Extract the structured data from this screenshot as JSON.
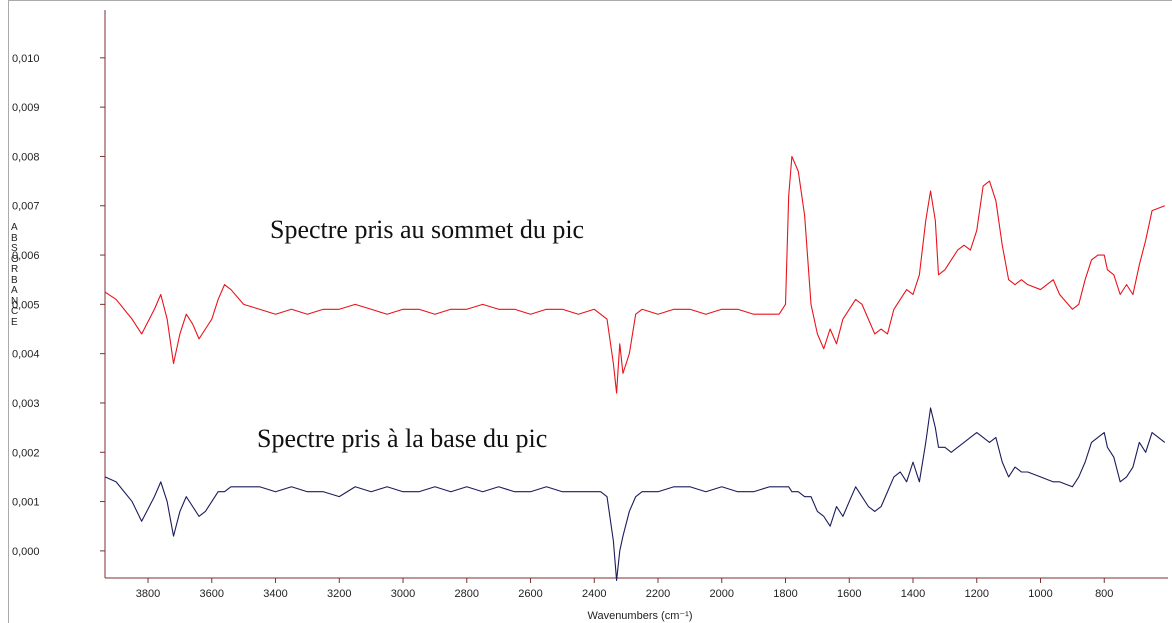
{
  "chart_data": {
    "type": "line",
    "y_label": "ABSORBANCE",
    "x_label": "Wavenumbers (cm⁻¹)",
    "annotations": [
      "Spectre pris au sommet du pic",
      "Spectre pris à la base du pic"
    ],
    "xlim": [
      3935,
      600
    ],
    "ylim": [
      -0.00055,
      0.01097
    ],
    "xticks": [
      3800,
      3600,
      3400,
      3200,
      3000,
      2800,
      2600,
      2400,
      2200,
      2000,
      1800,
      1600,
      1400,
      1200,
      1000,
      800
    ],
    "yticks": [
      {
        "value": 0,
        "label": "0,000"
      },
      {
        "value": 0.001,
        "label": "0,001"
      },
      {
        "value": 0.002,
        "label": "0,002"
      },
      {
        "value": 0.003,
        "label": "0,003"
      },
      {
        "value": 0.004,
        "label": "0,004"
      },
      {
        "value": 0.005,
        "label": "0,005"
      },
      {
        "value": 0.006,
        "label": "0,006"
      },
      {
        "value": 0.007,
        "label": "0,007"
      },
      {
        "value": 0.008,
        "label": "0,008"
      },
      {
        "value": 0.009,
        "label": "0,009"
      },
      {
        "value": 0.01,
        "label": "0,010"
      }
    ],
    "x": [
      3935,
      3900,
      3850,
      3820,
      3780,
      3760,
      3740,
      3720,
      3700,
      3680,
      3660,
      3640,
      3620,
      3600,
      3580,
      3560,
      3540,
      3500,
      3450,
      3400,
      3350,
      3300,
      3250,
      3200,
      3150,
      3100,
      3050,
      3000,
      2950,
      2900,
      2850,
      2800,
      2750,
      2700,
      2650,
      2600,
      2550,
      2500,
      2450,
      2400,
      2380,
      2360,
      2340,
      2330,
      2320,
      2310,
      2290,
      2270,
      2250,
      2200,
      2150,
      2100,
      2050,
      2000,
      1950,
      1900,
      1850,
      1820,
      1800,
      1790,
      1780,
      1760,
      1740,
      1720,
      1700,
      1680,
      1660,
      1640,
      1620,
      1600,
      1580,
      1560,
      1540,
      1520,
      1500,
      1480,
      1460,
      1440,
      1420,
      1400,
      1380,
      1360,
      1345,
      1330,
      1320,
      1300,
      1280,
      1260,
      1240,
      1220,
      1200,
      1180,
      1160,
      1140,
      1120,
      1100,
      1080,
      1060,
      1040,
      1000,
      960,
      940,
      900,
      880,
      860,
      840,
      820,
      800,
      790,
      770,
      750,
      730,
      710,
      690,
      670,
      650,
      610
    ],
    "series": [
      {
        "color": "#e8141c",
        "values": [
          0.00525,
          0.0051,
          0.0047,
          0.0044,
          0.0049,
          0.0052,
          0.0047,
          0.0038,
          0.0044,
          0.0048,
          0.0046,
          0.0043,
          0.0045,
          0.0047,
          0.0051,
          0.0054,
          0.0053,
          0.005,
          0.0049,
          0.0048,
          0.0049,
          0.0048,
          0.0049,
          0.0049,
          0.005,
          0.0049,
          0.0048,
          0.0049,
          0.0049,
          0.0048,
          0.0049,
          0.0049,
          0.005,
          0.0049,
          0.0049,
          0.0048,
          0.0049,
          0.0049,
          0.0048,
          0.0049,
          0.0048,
          0.0047,
          0.0038,
          0.0032,
          0.0042,
          0.0036,
          0.004,
          0.0048,
          0.0049,
          0.0048,
          0.0049,
          0.0049,
          0.0048,
          0.0049,
          0.0049,
          0.0048,
          0.0048,
          0.0048,
          0.005,
          0.0072,
          0.008,
          0.0077,
          0.0068,
          0.005,
          0.0044,
          0.0041,
          0.0045,
          0.0042,
          0.0047,
          0.0049,
          0.0051,
          0.005,
          0.0047,
          0.0044,
          0.0045,
          0.0044,
          0.0049,
          0.0051,
          0.0053,
          0.0052,
          0.0056,
          0.0067,
          0.0073,
          0.0067,
          0.0056,
          0.0057,
          0.0059,
          0.0061,
          0.0062,
          0.0061,
          0.0065,
          0.0074,
          0.0075,
          0.0071,
          0.0062,
          0.0055,
          0.0054,
          0.0055,
          0.0054,
          0.0053,
          0.0055,
          0.0052,
          0.0049,
          0.005,
          0.0055,
          0.0059,
          0.006,
          0.006,
          0.0057,
          0.0056,
          0.0052,
          0.0054,
          0.0052,
          0.0058,
          0.0063,
          0.0069,
          0.007
        ]
      },
      {
        "color": "#1c1c5c",
        "values": [
          0.0015,
          0.0014,
          0.001,
          0.0006,
          0.0011,
          0.0014,
          0.001,
          0.0003,
          0.0008,
          0.0011,
          0.0009,
          0.0007,
          0.0008,
          0.001,
          0.0012,
          0.0012,
          0.0013,
          0.0013,
          0.0013,
          0.0012,
          0.0013,
          0.0012,
          0.0012,
          0.0011,
          0.0013,
          0.0012,
          0.0013,
          0.0012,
          0.0012,
          0.0013,
          0.0012,
          0.0013,
          0.0012,
          0.0013,
          0.0012,
          0.0012,
          0.0013,
          0.0012,
          0.0012,
          0.0012,
          0.0012,
          0.0011,
          0.0002,
          -0.0006,
          0.0,
          0.0003,
          0.0008,
          0.0011,
          0.0012,
          0.0012,
          0.0013,
          0.0013,
          0.0012,
          0.0013,
          0.0012,
          0.0012,
          0.0013,
          0.0013,
          0.0013,
          0.0013,
          0.0012,
          0.0012,
          0.0011,
          0.0011,
          0.0008,
          0.0007,
          0.0005,
          0.0009,
          0.0007,
          0.001,
          0.0013,
          0.0011,
          0.0009,
          0.0008,
          0.0009,
          0.0012,
          0.0015,
          0.0016,
          0.0014,
          0.0018,
          0.0014,
          0.0022,
          0.0029,
          0.0025,
          0.0021,
          0.0021,
          0.002,
          0.0021,
          0.0022,
          0.0023,
          0.0024,
          0.0023,
          0.0022,
          0.0023,
          0.0018,
          0.0015,
          0.0017,
          0.0016,
          0.0016,
          0.0015,
          0.0014,
          0.0014,
          0.0013,
          0.0015,
          0.0018,
          0.0022,
          0.0023,
          0.0024,
          0.0021,
          0.0019,
          0.0014,
          0.0015,
          0.0017,
          0.0022,
          0.002,
          0.0024,
          0.0022
        ]
      }
    ]
  }
}
